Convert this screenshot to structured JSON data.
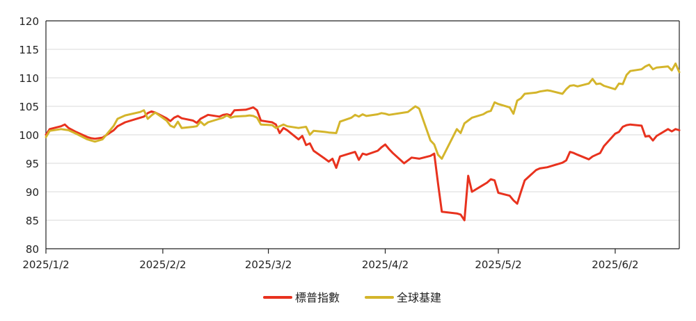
{
  "chart_data": {
    "type": "line",
    "title": "",
    "xlabel": "",
    "ylabel": "",
    "ylim": [
      80,
      120
    ],
    "yticks": [
      80,
      85,
      90,
      95,
      100,
      105,
      110,
      115,
      120
    ],
    "xlim": [
      "2025-01-02",
      "2025-06-19"
    ],
    "xticks": [
      "2025-01-02",
      "2025-02-02",
      "2025-03-02",
      "2025-04-02",
      "2025-05-02",
      "2025-06-02"
    ],
    "xtick_labels": [
      "2025/1/2",
      "2025/2/2",
      "2025/3/2",
      "2025/4/2",
      "2025/5/2",
      "2025/6/2"
    ],
    "grid": {
      "horizontal": true,
      "vertical": false
    },
    "legend_position": "bottom-center",
    "series": [
      {
        "name": "標普指數",
        "color": "#e8321e",
        "points": [
          [
            "2025-01-02",
            100.0
          ],
          [
            "2025-01-03",
            101.0
          ],
          [
            "2025-01-06",
            101.5
          ],
          [
            "2025-01-07",
            101.8
          ],
          [
            "2025-01-08",
            101.2
          ],
          [
            "2025-01-10",
            100.5
          ],
          [
            "2025-01-13",
            99.6
          ],
          [
            "2025-01-14",
            99.4
          ],
          [
            "2025-01-15",
            99.3
          ],
          [
            "2025-01-17",
            99.5
          ],
          [
            "2025-01-20",
            100.8
          ],
          [
            "2025-01-21",
            101.5
          ],
          [
            "2025-01-23",
            102.2
          ],
          [
            "2025-01-27",
            103.0
          ],
          [
            "2025-01-28",
            103.2
          ],
          [
            "2025-01-29",
            103.8
          ],
          [
            "2025-01-30",
            104.1
          ],
          [
            "2025-01-31",
            103.9
          ],
          [
            "2025-02-03",
            102.9
          ],
          [
            "2025-02-04",
            102.4
          ],
          [
            "2025-02-05",
            103.0
          ],
          [
            "2025-02-06",
            103.3
          ],
          [
            "2025-02-07",
            102.9
          ],
          [
            "2025-02-10",
            102.5
          ],
          [
            "2025-02-11",
            102.1
          ],
          [
            "2025-02-12",
            102.8
          ],
          [
            "2025-02-14",
            103.5
          ],
          [
            "2025-02-17",
            103.2
          ],
          [
            "2025-02-18",
            103.5
          ],
          [
            "2025-02-19",
            103.6
          ],
          [
            "2025-02-20",
            103.4
          ],
          [
            "2025-02-21",
            104.3
          ],
          [
            "2025-02-24",
            104.4
          ],
          [
            "2025-02-25",
            104.6
          ],
          [
            "2025-02-26",
            104.8
          ],
          [
            "2025-02-27",
            104.3
          ],
          [
            "2025-02-28",
            102.5
          ],
          [
            "2025-03-03",
            102.2
          ],
          [
            "2025-03-04",
            101.8
          ],
          [
            "2025-03-05",
            100.3
          ],
          [
            "2025-03-06",
            101.2
          ],
          [
            "2025-03-07",
            100.8
          ],
          [
            "2025-03-10",
            99.2
          ],
          [
            "2025-03-11",
            99.8
          ],
          [
            "2025-03-12",
            98.2
          ],
          [
            "2025-03-13",
            98.5
          ],
          [
            "2025-03-14",
            97.2
          ],
          [
            "2025-03-17",
            95.8
          ],
          [
            "2025-03-18",
            95.3
          ],
          [
            "2025-03-19",
            95.8
          ],
          [
            "2025-03-20",
            94.2
          ],
          [
            "2025-03-21",
            96.2
          ],
          [
            "2025-03-24",
            96.8
          ],
          [
            "2025-03-25",
            97.0
          ],
          [
            "2025-03-26",
            95.6
          ],
          [
            "2025-03-27",
            96.7
          ],
          [
            "2025-03-28",
            96.5
          ],
          [
            "2025-03-31",
            97.2
          ],
          [
            "2025-04-01",
            97.8
          ],
          [
            "2025-04-02",
            98.3
          ],
          [
            "2025-04-03",
            97.5
          ],
          [
            "2025-04-04",
            96.8
          ],
          [
            "2025-04-07",
            95.0
          ],
          [
            "2025-04-08",
            95.5
          ],
          [
            "2025-04-09",
            96.0
          ],
          [
            "2025-04-11",
            95.8
          ],
          [
            "2025-04-14",
            96.3
          ],
          [
            "2025-04-15",
            96.7
          ],
          [
            "2025-04-16",
            91.5
          ],
          [
            "2025-04-17",
            86.5
          ],
          [
            "2025-04-21",
            86.2
          ],
          [
            "2025-04-22",
            86.0
          ],
          [
            "2025-04-23",
            85.0
          ],
          [
            "2025-04-24",
            92.8
          ],
          [
            "2025-04-25",
            90.0
          ],
          [
            "2025-04-28",
            91.2
          ],
          [
            "2025-04-29",
            91.6
          ],
          [
            "2025-04-30",
            92.2
          ],
          [
            "2025-05-01",
            92.0
          ],
          [
            "2025-05-02",
            89.8
          ],
          [
            "2025-05-05",
            89.3
          ],
          [
            "2025-05-06",
            88.5
          ],
          [
            "2025-05-07",
            87.9
          ],
          [
            "2025-05-08",
            90.0
          ],
          [
            "2025-05-09",
            92.0
          ],
          [
            "2025-05-12",
            93.8
          ],
          [
            "2025-05-13",
            94.1
          ],
          [
            "2025-05-15",
            94.3
          ],
          [
            "2025-05-16",
            94.5
          ],
          [
            "2025-05-19",
            95.1
          ],
          [
            "2025-05-20",
            95.5
          ],
          [
            "2025-05-21",
            97.0
          ],
          [
            "2025-05-22",
            96.8
          ],
          [
            "2025-05-23",
            96.5
          ],
          [
            "2025-05-26",
            95.7
          ],
          [
            "2025-05-27",
            96.2
          ],
          [
            "2025-05-28",
            96.5
          ],
          [
            "2025-05-29",
            96.8
          ],
          [
            "2025-05-30",
            98.0
          ],
          [
            "2025-06-02",
            100.2
          ],
          [
            "2025-06-03",
            100.5
          ],
          [
            "2025-06-04",
            101.4
          ],
          [
            "2025-06-05",
            101.7
          ],
          [
            "2025-06-06",
            101.8
          ],
          [
            "2025-06-09",
            101.6
          ],
          [
            "2025-06-10",
            99.7
          ],
          [
            "2025-06-11",
            99.8
          ],
          [
            "2025-06-12",
            99.0
          ],
          [
            "2025-06-13",
            99.8
          ],
          [
            "2025-06-16",
            101.0
          ],
          [
            "2025-06-17",
            100.6
          ],
          [
            "2025-06-18",
            101.0
          ],
          [
            "2025-06-19",
            100.8
          ]
        ]
      },
      {
        "name": "全球基建",
        "color": "#d4b52b",
        "points": [
          [
            "2025-01-02",
            99.6
          ],
          [
            "2025-01-03",
            100.7
          ],
          [
            "2025-01-06",
            101.0
          ],
          [
            "2025-01-07",
            100.9
          ],
          [
            "2025-01-08",
            100.8
          ],
          [
            "2025-01-10",
            100.2
          ],
          [
            "2025-01-13",
            99.2
          ],
          [
            "2025-01-15",
            98.8
          ],
          [
            "2025-01-17",
            99.2
          ],
          [
            "2025-01-20",
            101.6
          ],
          [
            "2025-01-21",
            102.8
          ],
          [
            "2025-01-23",
            103.4
          ],
          [
            "2025-01-27",
            104.0
          ],
          [
            "2025-01-28",
            104.3
          ],
          [
            "2025-01-29",
            102.8
          ],
          [
            "2025-01-30",
            103.4
          ],
          [
            "2025-01-31",
            103.9
          ],
          [
            "2025-02-03",
            102.5
          ],
          [
            "2025-02-04",
            101.6
          ],
          [
            "2025-02-05",
            101.3
          ],
          [
            "2025-02-06",
            102.3
          ],
          [
            "2025-02-07",
            101.2
          ],
          [
            "2025-02-10",
            101.4
          ],
          [
            "2025-02-11",
            101.5
          ],
          [
            "2025-02-12",
            102.3
          ],
          [
            "2025-02-13",
            101.7
          ],
          [
            "2025-02-14",
            102.2
          ],
          [
            "2025-02-17",
            102.8
          ],
          [
            "2025-02-18",
            103.0
          ],
          [
            "2025-02-19",
            103.4
          ],
          [
            "2025-02-20",
            103.0
          ],
          [
            "2025-02-21",
            103.2
          ],
          [
            "2025-02-24",
            103.3
          ],
          [
            "2025-02-25",
            103.4
          ],
          [
            "2025-02-26",
            103.3
          ],
          [
            "2025-02-27",
            103.0
          ],
          [
            "2025-02-28",
            101.8
          ],
          [
            "2025-03-03",
            101.7
          ],
          [
            "2025-03-04",
            101.2
          ],
          [
            "2025-03-05",
            101.5
          ],
          [
            "2025-03-06",
            101.8
          ],
          [
            "2025-03-07",
            101.5
          ],
          [
            "2025-03-10",
            101.2
          ],
          [
            "2025-03-11",
            101.3
          ],
          [
            "2025-03-12",
            101.4
          ],
          [
            "2025-03-13",
            100.0
          ],
          [
            "2025-03-14",
            100.7
          ],
          [
            "2025-03-17",
            100.5
          ],
          [
            "2025-03-18",
            100.4
          ],
          [
            "2025-03-20",
            100.3
          ],
          [
            "2025-03-21",
            102.3
          ],
          [
            "2025-03-24",
            103.0
          ],
          [
            "2025-03-25",
            103.5
          ],
          [
            "2025-03-26",
            103.2
          ],
          [
            "2025-03-27",
            103.6
          ],
          [
            "2025-03-28",
            103.3
          ],
          [
            "2025-03-31",
            103.6
          ],
          [
            "2025-04-01",
            103.8
          ],
          [
            "2025-04-02",
            103.7
          ],
          [
            "2025-04-03",
            103.5
          ],
          [
            "2025-04-07",
            103.9
          ],
          [
            "2025-04-08",
            104.0
          ],
          [
            "2025-04-09",
            104.5
          ],
          [
            "2025-04-10",
            105.0
          ],
          [
            "2025-04-11",
            104.6
          ],
          [
            "2025-04-14",
            99.0
          ],
          [
            "2025-04-15",
            98.3
          ],
          [
            "2025-04-16",
            96.5
          ],
          [
            "2025-04-17",
            95.8
          ],
          [
            "2025-04-21",
            101.0
          ],
          [
            "2025-04-22",
            100.3
          ],
          [
            "2025-04-23",
            102.0
          ],
          [
            "2025-04-24",
            102.5
          ],
          [
            "2025-04-25",
            103.0
          ],
          [
            "2025-04-28",
            103.6
          ],
          [
            "2025-04-29",
            104.0
          ],
          [
            "2025-04-30",
            104.2
          ],
          [
            "2025-05-01",
            105.7
          ],
          [
            "2025-05-02",
            105.4
          ],
          [
            "2025-05-05",
            104.8
          ],
          [
            "2025-05-06",
            103.7
          ],
          [
            "2025-05-07",
            106.0
          ],
          [
            "2025-05-08",
            106.4
          ],
          [
            "2025-05-09",
            107.2
          ],
          [
            "2025-05-12",
            107.4
          ],
          [
            "2025-05-13",
            107.6
          ],
          [
            "2025-05-15",
            107.8
          ],
          [
            "2025-05-16",
            107.7
          ],
          [
            "2025-05-19",
            107.2
          ],
          [
            "2025-05-20",
            108.0
          ],
          [
            "2025-05-21",
            108.6
          ],
          [
            "2025-05-22",
            108.7
          ],
          [
            "2025-05-23",
            108.5
          ],
          [
            "2025-05-26",
            109.0
          ],
          [
            "2025-05-27",
            109.8
          ],
          [
            "2025-05-28",
            108.9
          ],
          [
            "2025-05-29",
            109.0
          ],
          [
            "2025-05-30",
            108.6
          ],
          [
            "2025-06-02",
            108.0
          ],
          [
            "2025-06-03",
            109.0
          ],
          [
            "2025-06-04",
            108.9
          ],
          [
            "2025-06-05",
            110.5
          ],
          [
            "2025-06-06",
            111.2
          ],
          [
            "2025-06-09",
            111.5
          ],
          [
            "2025-06-10",
            112.0
          ],
          [
            "2025-06-11",
            112.3
          ],
          [
            "2025-06-12",
            111.5
          ],
          [
            "2025-06-13",
            111.8
          ],
          [
            "2025-06-16",
            112.0
          ],
          [
            "2025-06-17",
            111.3
          ],
          [
            "2025-06-18",
            112.5
          ],
          [
            "2025-06-19",
            111.0
          ]
        ]
      }
    ]
  }
}
